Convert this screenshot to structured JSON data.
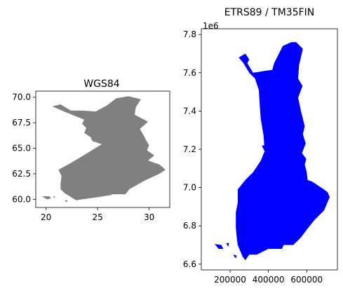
{
  "chart_data": [
    {
      "type": "map",
      "title": "WGS84",
      "xlim": [
        19.0,
        32.0
      ],
      "ylim": [
        59.2,
        70.6
      ],
      "xticks": [
        20,
        25,
        30
      ],
      "xtick_labels": [
        "20",
        "25",
        "30"
      ],
      "yticks": [
        60.0,
        62.5,
        65.0,
        67.5,
        70.0
      ],
      "ytick_labels": [
        "60.0",
        "62.5",
        "65.0",
        "67.5",
        "70.0"
      ],
      "offset_label": "",
      "fill": "#808080",
      "series": [
        {
          "polygons": [
            [
              [
                20.6,
                69.1
              ],
              [
                21.4,
                69.3
              ],
              [
                22.4,
                68.7
              ],
              [
                23.5,
                68.7
              ],
              [
                24.8,
                68.6
              ],
              [
                25.9,
                69.2
              ],
              [
                26.8,
                69.9
              ],
              [
                28.0,
                70.1
              ],
              [
                29.2,
                69.8
              ],
              [
                28.7,
                69.0
              ],
              [
                28.6,
                68.3
              ],
              [
                29.9,
                67.6
              ],
              [
                29.1,
                66.9
              ],
              [
                29.5,
                66.2
              ],
              [
                29.7,
                65.8
              ],
              [
                30.0,
                65.3
              ],
              [
                29.8,
                64.8
              ],
              [
                30.5,
                64.3
              ],
              [
                29.9,
                63.8
              ],
              [
                31.0,
                63.4
              ],
              [
                31.6,
                62.9
              ],
              [
                31.0,
                62.5
              ],
              [
                29.5,
                61.8
              ],
              [
                28.8,
                61.4
              ],
              [
                28.1,
                61.0
              ],
              [
                27.7,
                60.5
              ],
              [
                26.5,
                60.5
              ],
              [
                26.2,
                60.4
              ],
              [
                25.0,
                60.2
              ],
              [
                23.5,
                60.0
              ],
              [
                22.9,
                59.9
              ],
              [
                22.6,
                60.1
              ],
              [
                22.3,
                60.3
              ],
              [
                21.8,
                60.6
              ],
              [
                21.4,
                61.0
              ],
              [
                21.4,
                61.5
              ],
              [
                21.5,
                62.3
              ],
              [
                21.2,
                62.9
              ],
              [
                22.3,
                63.5
              ],
              [
                23.3,
                64.1
              ],
              [
                24.6,
                64.9
              ],
              [
                25.4,
                65.4
              ],
              [
                24.5,
                65.7
              ],
              [
                24.3,
                66.1
              ],
              [
                23.7,
                66.5
              ],
              [
                23.9,
                67.0
              ],
              [
                23.5,
                67.4
              ],
              [
                23.7,
                67.8
              ],
              [
                22.0,
                68.5
              ],
              [
                20.6,
                69.1
              ]
            ],
            [
              [
                19.6,
                60.3
              ],
              [
                20.3,
                60.3
              ],
              [
                20.5,
                60.1
              ],
              [
                20.1,
                60.0
              ],
              [
                19.6,
                60.3
              ]
            ],
            [
              [
                20.7,
                60.3
              ],
              [
                20.9,
                60.3
              ],
              [
                20.8,
                60.1
              ],
              [
                20.7,
                60.3
              ]
            ],
            [
              [
                21.8,
                59.9
              ],
              [
                22.1,
                59.9
              ],
              [
                22.0,
                59.7
              ],
              [
                21.8,
                59.9
              ]
            ],
            [
              [
                24.5,
                64.9
              ],
              [
                24.8,
                64.9
              ],
              [
                24.6,
                64.7
              ],
              [
                24.5,
                64.9
              ]
            ]
          ]
        }
      ]
    },
    {
      "type": "map",
      "title": "ETRS89 / TM35FIN",
      "xlim": [
        50000,
        760000
      ],
      "ylim": [
        6570000,
        7830000
      ],
      "xticks": [
        200000,
        400000,
        600000
      ],
      "xtick_labels": [
        "200000",
        "400000",
        "600000"
      ],
      "yticks": [
        6600000,
        6800000,
        7000000,
        7200000,
        7400000,
        7600000,
        7800000
      ],
      "ytick_labels": [
        "6.6",
        "6.8",
        "7.0",
        "7.2",
        "7.4",
        "7.6",
        "7.8"
      ],
      "offset_label": "1e6",
      "fill": "#0000ff",
      "series": [
        {
          "polygons": [
            [
              [
                245000,
                7680000
              ],
              [
                280000,
                7700000
              ],
              [
                300000,
                7670000
              ],
              [
                290000,
                7650000
              ],
              [
                320000,
                7600000
              ],
              [
                355000,
                7605000
              ],
              [
                380000,
                7610000
              ],
              [
                420000,
                7615000
              ],
              [
                430000,
                7650000
              ],
              [
                475000,
                7740000
              ],
              [
                520000,
                7760000
              ],
              [
                545000,
                7760000
              ],
              [
                580000,
                7725000
              ],
              [
                560000,
                7640000
              ],
              [
                555000,
                7570000
              ],
              [
                578000,
                7530000
              ],
              [
                555000,
                7470000
              ],
              [
                570000,
                7400000
              ],
              [
                590000,
                7320000
              ],
              [
                580000,
                7280000
              ],
              [
                595000,
                7230000
              ],
              [
                575000,
                7180000
              ],
              [
                598000,
                7150000
              ],
              [
                590000,
                7120000
              ],
              [
                600000,
                7080000
              ],
              [
                605000,
                7040000
              ],
              [
                630000,
                7030000
              ],
              [
                690000,
                6990000
              ],
              [
                710000,
                6975000
              ],
              [
                720000,
                6950000
              ],
              [
                690000,
                6880000
              ],
              [
                640000,
                6830000
              ],
              [
                600000,
                6780000
              ],
              [
                570000,
                6740000
              ],
              [
                530000,
                6700000
              ],
              [
                480000,
                6700000
              ],
              [
                470000,
                6680000
              ],
              [
                400000,
                6680000
              ],
              [
                340000,
                6650000
              ],
              [
                300000,
                6650000
              ],
              [
                280000,
                6620000
              ],
              [
                265000,
                6640000
              ],
              [
                255000,
                6665000
              ],
              [
                240000,
                6700000
              ],
              [
                235000,
                6740000
              ],
              [
                230000,
                6790000
              ],
              [
                230000,
                6870000
              ],
              [
                240000,
                6920000
              ],
              [
                240000,
                6990000
              ],
              [
                280000,
                7040000
              ],
              [
                320000,
                7080000
              ],
              [
                360000,
                7140000
              ],
              [
                380000,
                7190000
              ],
              [
                375000,
                7270000
              ],
              [
                360000,
                7360000
              ],
              [
                355000,
                7430000
              ],
              [
                350000,
                7510000
              ],
              [
                330000,
                7570000
              ],
              [
                300000,
                7600000
              ],
              [
                270000,
                7650000
              ],
              [
                245000,
                7680000
              ]
            ],
            [
              [
                120000,
                6705000
              ],
              [
                155000,
                6700000
              ],
              [
                165000,
                6680000
              ],
              [
                140000,
                6680000
              ],
              [
                120000,
                6705000
              ]
            ],
            [
              [
                180000,
                6710000
              ],
              [
                195000,
                6710000
              ],
              [
                190000,
                6690000
              ],
              [
                180000,
                6710000
              ]
            ],
            [
              [
                215000,
                6650000
              ],
              [
                235000,
                6645000
              ],
              [
                230000,
                6630000
              ],
              [
                215000,
                6650000
              ]
            ],
            [
              [
                365000,
                7220000
              ],
              [
                385000,
                7220000
              ],
              [
                380000,
                7190000
              ],
              [
                365000,
                7220000
              ]
            ]
          ]
        }
      ]
    }
  ]
}
